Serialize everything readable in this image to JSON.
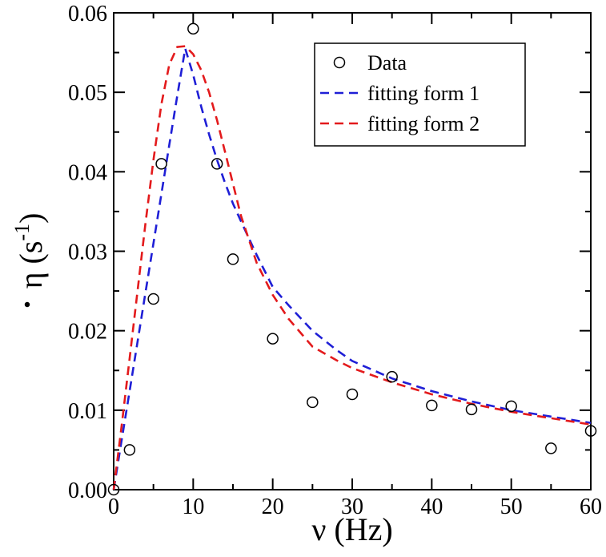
{
  "chart_data": {
    "type": "scatter",
    "title": "",
    "xlabel": "ν (Hz)",
    "ylabel": {
      "symbol": "η",
      "open": " (s",
      "exp": "-1",
      "close": ")"
    },
    "xlim": [
      0,
      60
    ],
    "ylim": [
      0,
      0.06
    ],
    "x_ticks": [
      0,
      10,
      20,
      30,
      40,
      50,
      60
    ],
    "x_tick_labels": [
      "0",
      "10",
      "20",
      "30",
      "40",
      "50",
      "60"
    ],
    "y_ticks": [
      0,
      0.01,
      0.02,
      0.03,
      0.04,
      0.05,
      0.06
    ],
    "y_tick_labels": [
      "0.00",
      "0.01",
      "0.02",
      "0.03",
      "0.04",
      "0.05",
      "0.06"
    ],
    "grid": false,
    "legend_position": "top-right",
    "series": [
      {
        "name": "Data",
        "style": "markers",
        "marker": "open-circle",
        "color": "#000000",
        "x": [
          0,
          2,
          5,
          6,
          10,
          13,
          15,
          20,
          25,
          30,
          35,
          40,
          45,
          50,
          55,
          60
        ],
        "y": [
          0.0,
          0.005,
          0.024,
          0.041,
          0.058,
          0.041,
          0.029,
          0.019,
          0.011,
          0.012,
          0.0142,
          0.0106,
          0.0101,
          0.0105,
          0.0052,
          0.0074
        ]
      },
      {
        "name": "fitting form 1",
        "style": "dashed-line",
        "color": "#1f1fd6",
        "x": [
          0,
          1,
          2,
          3,
          4,
          5,
          6,
          7,
          8,
          9,
          10,
          11,
          12,
          13,
          14,
          15,
          16,
          18,
          20,
          22,
          25,
          28,
          30,
          35,
          40,
          45,
          50,
          55,
          60
        ],
        "y": [
          0.0,
          0.0062,
          0.0124,
          0.0186,
          0.0248,
          0.031,
          0.0372,
          0.0434,
          0.0496,
          0.0555,
          0.0522,
          0.0482,
          0.0447,
          0.0415,
          0.0386,
          0.036,
          0.0338,
          0.0295,
          0.0255,
          0.0232,
          0.02,
          0.0176,
          0.0162,
          0.014,
          0.0124,
          0.0111,
          0.01,
          0.0092,
          0.0084
        ]
      },
      {
        "name": "fitting form 2",
        "style": "dashed-line",
        "color": "#e31a1c",
        "x": [
          0,
          1,
          2,
          3,
          4,
          5,
          6,
          7,
          8,
          9,
          10,
          11,
          12,
          13,
          14,
          15,
          16,
          18,
          20,
          22,
          25,
          28,
          30,
          35,
          40,
          45,
          50,
          55,
          60
        ],
        "y": [
          0.0,
          0.008,
          0.0165,
          0.025,
          0.0335,
          0.0415,
          0.0485,
          0.0535,
          0.0557,
          0.0558,
          0.0548,
          0.0528,
          0.05,
          0.0465,
          0.0425,
          0.0385,
          0.0345,
          0.0285,
          0.0245,
          0.0215,
          0.018,
          0.0163,
          0.0153,
          0.0135,
          0.012,
          0.0108,
          0.0098,
          0.009,
          0.0082
        ]
      }
    ]
  }
}
